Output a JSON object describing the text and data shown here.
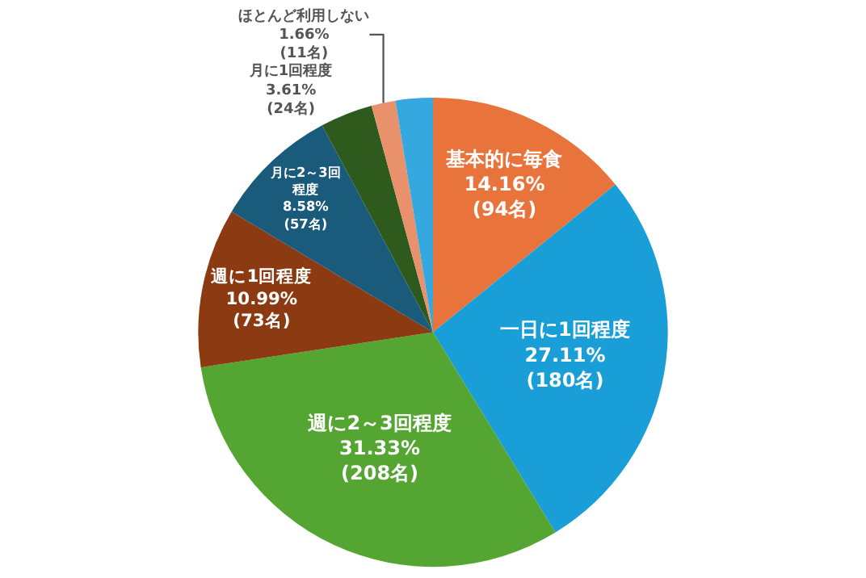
{
  "chart_data": {
    "type": "pie",
    "categories": [
      "基本的に毎食",
      "一日に1回程度",
      "週に2～3回程度",
      "週に1回程度",
      "月に2～3回程度",
      "月に1回程度",
      "ほとんど利用しない",
      null
    ],
    "values": [
      14.16,
      27.11,
      31.33,
      10.99,
      8.58,
      3.61,
      1.66,
      2.56
    ],
    "value_labels": [
      "14.16%\n(94名)",
      "27.11%\n(180名)",
      "31.33%\n(208名)",
      "10.99%\n(73名)",
      "8.58%\n(57名)",
      "3.61%\n(24名)",
      "1.66%\n(11名)",
      null
    ],
    "colors": [
      "#e8743b",
      "#1a9ed8",
      "#55a532",
      "#8b3a12",
      "#1a5a7a",
      "#2e5a1e",
      "#e8916a",
      "#35a8e0"
    ]
  }
}
